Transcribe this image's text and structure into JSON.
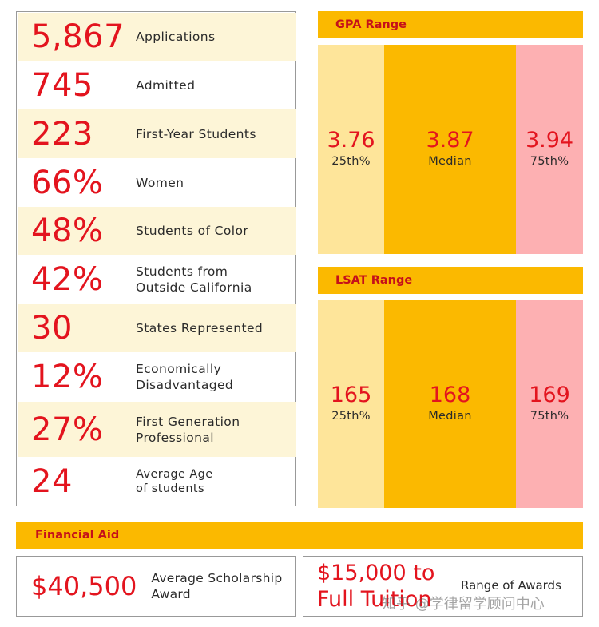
{
  "stats": [
    {
      "value": "5,867",
      "label": "Applications"
    },
    {
      "value": "745",
      "label": "Admitted"
    },
    {
      "value": "223",
      "label": "First-Year Students"
    },
    {
      "value": "66%",
      "label": "Women"
    },
    {
      "value": "48%",
      "label": "Students of Color"
    },
    {
      "value": "42%",
      "label": "Students from\nOutside California"
    },
    {
      "value": "30",
      "label": "States Represented"
    },
    {
      "value": "12%",
      "label": "Economically\nDisadvantaged"
    },
    {
      "value": "27%",
      "label": "First Generation\nProfessional"
    },
    {
      "value": "24",
      "label": "Average Age\nof students"
    }
  ],
  "gpa": {
    "title": "GPA Range",
    "p25": "3.76",
    "p25_label": "25th%",
    "median": "3.87",
    "median_label": "Median",
    "p75": "3.94",
    "p75_label": "75th%"
  },
  "lsat": {
    "title": "LSAT Range",
    "p25": "165",
    "p25_label": "25th%",
    "median": "168",
    "median_label": "Median",
    "p75": "169",
    "p75_label": "75th%"
  },
  "financial_aid": {
    "title": "Financial Aid",
    "avg_amount": "$40,500",
    "avg_label": "Average Scholarship\nAward",
    "range_amount": "$15,000 to\nFull Tuition",
    "range_label": "Range of Awards"
  },
  "watermark": "知乎 @学律留学顾问中心",
  "colors": {
    "accent_red": "#e3141e",
    "header_yellow": "#fbb900",
    "light_yellow": "#fee59a",
    "pink": "#fdb0b2",
    "row_shade": "#fdf5d7"
  }
}
